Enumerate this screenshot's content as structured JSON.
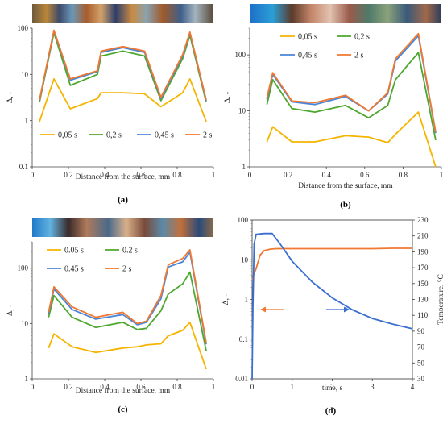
{
  "chart_data": [
    {
      "type": "line",
      "panel_label": "(a)",
      "xlabel": "Distance from the surface, mm",
      "ylabel": "Δ, -",
      "xlim": [
        0,
        1
      ],
      "ylim": [
        0.1,
        100
      ],
      "yscale": "log",
      "xticks": [
        "0",
        "0.2",
        "0.4",
        "0.6",
        "0.8",
        "1"
      ],
      "yticks": [
        "0.1",
        "1",
        "10",
        "100"
      ],
      "legend": "bottom",
      "x": [
        0.04,
        0.12,
        0.21,
        0.36,
        0.38,
        0.5,
        0.62,
        0.71,
        0.83,
        0.87,
        0.96
      ],
      "series": [
        {
          "name": "0,05 s",
          "color": "#f4b400",
          "values": [
            0.95,
            8.0,
            1.8,
            3.0,
            4.0,
            4.0,
            3.8,
            2.0,
            4.0,
            8.0,
            0.95
          ]
        },
        {
          "name": "0,2 s",
          "color": "#4ea72e",
          "values": [
            2.5,
            80,
            5.8,
            10,
            25,
            32,
            25,
            2.7,
            22,
            70,
            2.5
          ]
        },
        {
          "name": "0,45 s",
          "color": "#4a86d8",
          "values": [
            2.7,
            88,
            7.5,
            11.5,
            30,
            38,
            30,
            3.0,
            25,
            80,
            2.7
          ]
        },
        {
          "name": "2 s",
          "color": "#f07830",
          "values": [
            2.8,
            90,
            8.0,
            12,
            32,
            40,
            32,
            3.2,
            27,
            82,
            2.8
          ]
        }
      ]
    },
    {
      "type": "line",
      "panel_label": "(b)",
      "xlabel": "Distance from the surface, mm",
      "ylabel": "Δ, -",
      "xlim": [
        0,
        1
      ],
      "ylim": [
        1,
        300
      ],
      "yscale": "log",
      "xticks": [
        "0",
        "0.2",
        "0.4",
        "0.6",
        "0.8",
        "1"
      ],
      "yticks": [
        "1",
        "10",
        "100"
      ],
      "legend": "top-left",
      "x": [
        0.09,
        0.12,
        0.22,
        0.34,
        0.5,
        0.62,
        0.72,
        0.76,
        0.88,
        0.97
      ],
      "series": [
        {
          "name": "0,05 s",
          "color": "#f4b400",
          "values": [
            2.8,
            5.2,
            2.8,
            2.8,
            3.6,
            3.4,
            2.7,
            3.8,
            9.5,
            1.0
          ]
        },
        {
          "name": "0,2 s",
          "color": "#4ea72e",
          "values": [
            13,
            36,
            11,
            9.5,
            12.5,
            7.5,
            12.5,
            36,
            110,
            3.0
          ]
        },
        {
          "name": "0,45 s",
          "color": "#4a86d8",
          "values": [
            16,
            45,
            14.5,
            13,
            18,
            10,
            20,
            78,
            220,
            4.0
          ]
        },
        {
          "name": "2 s",
          "color": "#f07830",
          "values": [
            17,
            48,
            15,
            14,
            19,
            10,
            21,
            85,
            240,
            4.2
          ]
        }
      ]
    },
    {
      "type": "line",
      "panel_label": "(c)",
      "xlabel": "Distance from the surface, mm",
      "ylabel": "Δ, -",
      "xlim": [
        0,
        1
      ],
      "ylim": [
        1,
        300
      ],
      "yscale": "log",
      "xticks": [
        "0",
        "0.2",
        "0.4",
        "0.6",
        "0.8",
        "1"
      ],
      "yticks": [
        "1",
        "10",
        "100"
      ],
      "legend": "top-left",
      "x": [
        0.09,
        0.12,
        0.22,
        0.35,
        0.5,
        0.58,
        0.63,
        0.71,
        0.75,
        0.83,
        0.87,
        0.96
      ],
      "series": [
        {
          "name": "0.05 s",
          "color": "#f4b400",
          "values": [
            3.6,
            6.5,
            3.8,
            3.0,
            3.6,
            3.8,
            4.1,
            4.3,
            6.0,
            7.5,
            10.5,
            1.5
          ]
        },
        {
          "name": "0.2 s",
          "color": "#4ea72e",
          "values": [
            13,
            32,
            13,
            8.5,
            10.5,
            7.8,
            8.2,
            17,
            34,
            52,
            85,
            3.2
          ]
        },
        {
          "name": "0.45 s",
          "color": "#4a86d8",
          "values": [
            15,
            42,
            18,
            12,
            14.5,
            9.5,
            10.5,
            28,
            105,
            130,
            195,
            4.2
          ]
        },
        {
          "name": "2 s",
          "color": "#f07830",
          "values": [
            16,
            46,
            20,
            13,
            16,
            10,
            11,
            32,
            115,
            150,
            215,
            4.5
          ]
        }
      ]
    },
    {
      "type": "line",
      "panel_label": "(d)",
      "xlabel": "time, s",
      "ylabel": "Δ, -",
      "ylabel_right": "Temperature, °C",
      "xlim": [
        0,
        4
      ],
      "ylim": [
        0.01,
        100
      ],
      "yscale": "log",
      "ylim_right": [
        30,
        230
      ],
      "xticks": [
        "0",
        "1",
        "2",
        "3",
        "4"
      ],
      "yticks": [
        "0.01",
        "0.1",
        "1",
        "10",
        "100"
      ],
      "yticks_right": [
        "30",
        "50",
        "70",
        "90",
        "110",
        "130",
        "150",
        "170",
        "190",
        "210",
        "230"
      ],
      "series": [
        {
          "name": "Δ",
          "color": "#f07830",
          "axis": "left",
          "x": [
            0.0,
            0.02,
            0.05,
            0.1,
            0.15,
            0.2,
            0.3,
            0.45,
            0.6,
            1.0,
            2.0,
            3.0,
            3.5,
            4.0
          ],
          "values": [
            3.0,
            3.5,
            4.5,
            6.0,
            9.0,
            13,
            17,
            18.5,
            19,
            19,
            19,
            19,
            19.5,
            19.5
          ]
        },
        {
          "name": "Temperature",
          "color": "#3a6fd0",
          "axis": "right",
          "x": [
            0.0,
            0.02,
            0.05,
            0.1,
            0.3,
            0.5,
            0.7,
            1.0,
            1.5,
            2.0,
            2.5,
            3.0,
            3.5,
            4.0
          ],
          "values": [
            30,
            120,
            200,
            212,
            213,
            213,
            200,
            178,
            152,
            132,
            117,
            106,
            99,
            93
          ]
        }
      ]
    }
  ]
}
